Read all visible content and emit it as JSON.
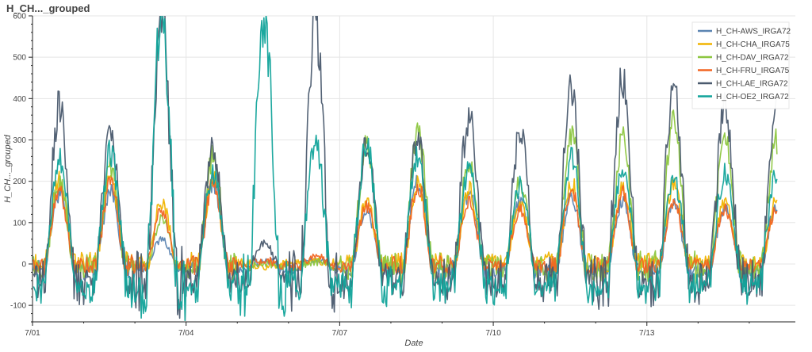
{
  "chart_data": {
    "type": "line",
    "title": "H_CH..._grouped",
    "xlabel": "Date",
    "ylabel": "H_CH..._grouped",
    "x_unit": "day of July",
    "xlim": [
      1,
      15.9
    ],
    "ylim": [
      -140,
      600
    ],
    "x_ticks": [
      {
        "value": 1,
        "label": "7/01"
      },
      {
        "value": 4,
        "label": "7/04"
      },
      {
        "value": 7,
        "label": "7/07"
      },
      {
        "value": 10,
        "label": "7/10"
      },
      {
        "value": 13,
        "label": "7/13"
      }
    ],
    "y_ticks": [
      -100,
      0,
      100,
      200,
      300,
      400,
      500,
      600
    ],
    "grid": true,
    "legend_position": "top-right",
    "series": [
      {
        "name": "H_CH-AWS_IRGA72",
        "color": "#5b84b1",
        "daily_peaks": [
          170,
          180,
          60,
          200,
          5,
          10,
          130,
          200,
          170,
          150,
          160,
          150,
          150,
          140
        ],
        "night_level": -20
      },
      {
        "name": "H_CH-CHA_IRGA75",
        "color": "#f0b400",
        "daily_peaks": [
          200,
          210,
          150,
          210,
          -5,
          10,
          150,
          190,
          180,
          140,
          200,
          180,
          200,
          150
        ],
        "night_level": 5
      },
      {
        "name": "H_CH-DAV_IRGA72",
        "color": "#8cc63f",
        "daily_peaks": [
          200,
          230,
          110,
          260,
          0,
          5,
          280,
          320,
          250,
          200,
          310,
          300,
          340,
          300
        ],
        "night_level": -10
      },
      {
        "name": "H_CH-FRU_IRGA75",
        "color": "#f26522",
        "daily_peaks": [
          180,
          200,
          130,
          200,
          10,
          20,
          140,
          190,
          150,
          130,
          180,
          170,
          150,
          130
        ],
        "night_level": -5
      },
      {
        "name": "H_CH-LAE_IRGA72",
        "color": "#4a5a6e",
        "daily_peaks": [
          380,
          310,
          600,
          280,
          50,
          570,
          290,
          300,
          360,
          320,
          420,
          460,
          440,
          380
        ],
        "night_level": -60
      },
      {
        "name": "H_CH-OE2_IRGA72",
        "color": "#11a39a",
        "daily_peaks": [
          260,
          270,
          600,
          220,
          600,
          300,
          290,
          260,
          230,
          190,
          260,
          240,
          210,
          220
        ],
        "night_level": -80
      }
    ]
  }
}
